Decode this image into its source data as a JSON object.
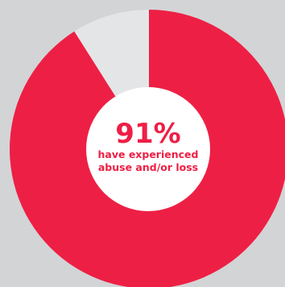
{
  "chart_data": {
    "type": "pie",
    "style": "donut",
    "slices": [
      {
        "label": "have experienced abuse and/or loss",
        "value": 91,
        "color": "#ee1f45"
      },
      {
        "label": "",
        "value": 9,
        "color": "#e4e5e7"
      }
    ],
    "center_value": "91%",
    "center_caption_line1": "have experienced",
    "center_caption_line2": "abuse and/or loss"
  },
  "colors": {
    "background": "#d3d4d6",
    "accent": "#ee1f45",
    "remainder": "#e4e5e7",
    "center_fill": "#ffffff"
  }
}
